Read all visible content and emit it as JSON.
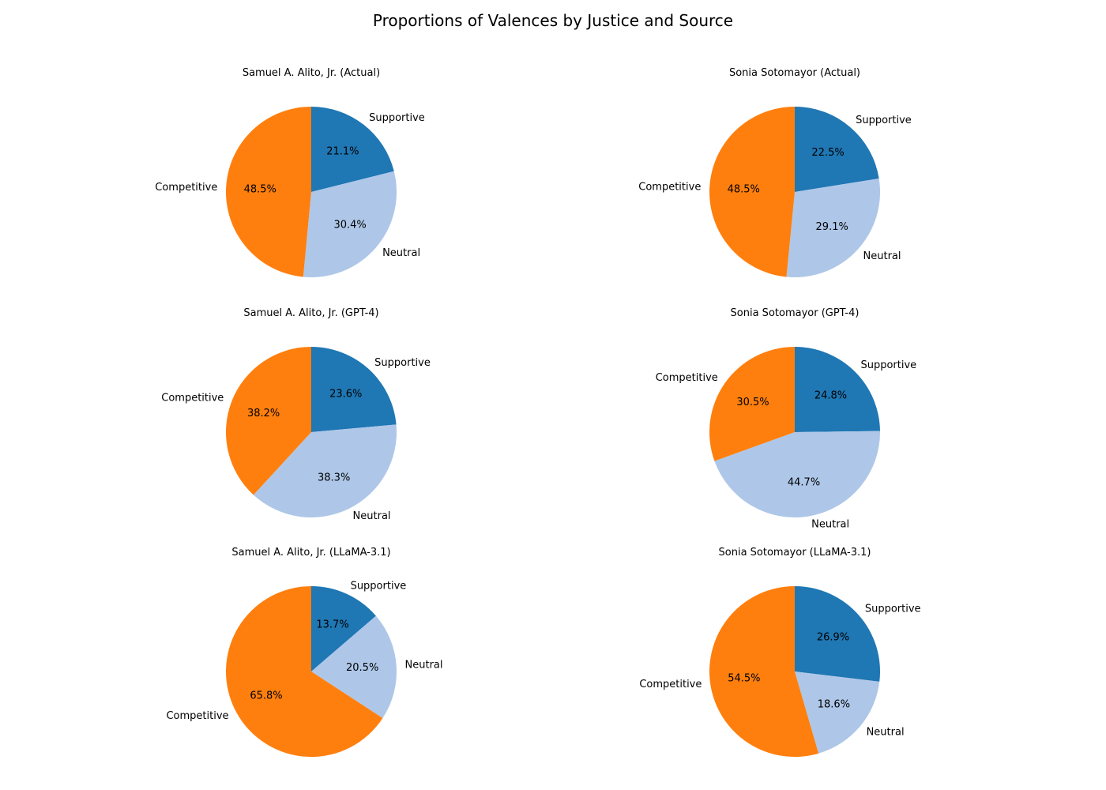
{
  "figure": {
    "title": "Proportions of Valences by Justice and Source"
  },
  "colors": {
    "Supportive": "#1f77b4",
    "Neutral": "#aec7e8",
    "Competitive": "#ff7f0e"
  },
  "chart_data": [
    {
      "type": "pie",
      "title": "Samuel A. Alito, Jr. (Actual)",
      "labels": [
        "Supportive",
        "Neutral",
        "Competitive"
      ],
      "values": [
        21.1,
        30.4,
        48.5
      ],
      "value_labels": [
        "21.1%",
        "30.4%",
        "48.5%"
      ]
    },
    {
      "type": "pie",
      "title": "Sonia Sotomayor (Actual)",
      "labels": [
        "Supportive",
        "Neutral",
        "Competitive"
      ],
      "values": [
        22.5,
        29.1,
        48.5
      ],
      "value_labels": [
        "22.5%",
        "29.1%",
        "48.5%"
      ]
    },
    {
      "type": "pie",
      "title": "Samuel A. Alito, Jr. (GPT-4)",
      "labels": [
        "Supportive",
        "Neutral",
        "Competitive"
      ],
      "values": [
        23.6,
        38.3,
        38.2
      ],
      "value_labels": [
        "23.6%",
        "38.3%",
        "38.2%"
      ]
    },
    {
      "type": "pie",
      "title": "Sonia Sotomayor (GPT-4)",
      "labels": [
        "Supportive",
        "Neutral",
        "Competitive"
      ],
      "values": [
        24.8,
        44.7,
        30.5
      ],
      "value_labels": [
        "24.8%",
        "44.7%",
        "30.5%"
      ]
    },
    {
      "type": "pie",
      "title": "Samuel A. Alito, Jr. (LLaMA-3.1)",
      "labels": [
        "Supportive",
        "Neutral",
        "Competitive"
      ],
      "values": [
        13.7,
        20.5,
        65.8
      ],
      "value_labels": [
        "13.7%",
        "20.5%",
        "65.8%"
      ]
    },
    {
      "type": "pie",
      "title": "Sonia Sotomayor (LLaMA-3.1)",
      "labels": [
        "Supportive",
        "Neutral",
        "Competitive"
      ],
      "values": [
        26.9,
        18.6,
        54.5
      ],
      "value_labels": [
        "26.9%",
        "18.6%",
        "54.5%"
      ]
    }
  ]
}
